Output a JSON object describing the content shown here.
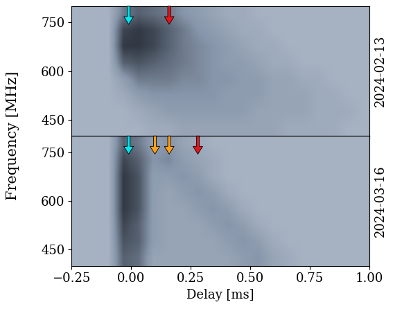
{
  "chart_data": [
    {
      "type": "heatmap",
      "title": "2024-02-13",
      "ylabel": "Frequency [MHz]",
      "xlim": [
        -0.25,
        1.0
      ],
      "ylim": [
        400,
        800
      ],
      "xticks": [
        {
          "value": -0.25,
          "label": "−0.25"
        },
        {
          "value": 0.0,
          "label": "0.00"
        },
        {
          "value": 0.25,
          "label": "0.25"
        },
        {
          "value": 0.5,
          "label": "0.50"
        },
        {
          "value": 0.75,
          "label": "0.75"
        },
        {
          "value": 1.0,
          "label": "1.00"
        }
      ],
      "yticks": [
        450,
        600,
        750
      ],
      "tick_labels": "y",
      "arrows": [
        {
          "delay": -0.01,
          "color": "#00e5ee"
        },
        {
          "delay": 0.16,
          "color": "#e8141c"
        }
      ],
      "cells": [
        [
          0.3,
          0.3,
          0.3,
          0.6,
          0.7,
          0.65,
          0.6,
          0.5,
          0.45,
          0.4,
          0.35,
          0.35,
          0.3,
          0.3,
          0.3,
          0.3,
          0.3,
          0.3,
          0.3,
          0.3
        ],
        [
          0.3,
          0.3,
          0.3,
          0.8,
          0.85,
          0.8,
          0.7,
          0.6,
          0.5,
          0.45,
          0.4,
          0.35,
          0.35,
          0.3,
          0.3,
          0.3,
          0.3,
          0.3,
          0.3,
          0.3
        ],
        [
          0.3,
          0.3,
          0.3,
          0.85,
          0.85,
          0.8,
          0.7,
          0.6,
          0.55,
          0.5,
          0.45,
          0.4,
          0.35,
          0.35,
          0.3,
          0.3,
          0.3,
          0.3,
          0.3,
          0.3
        ],
        [
          0.3,
          0.3,
          0.3,
          0.7,
          0.75,
          0.7,
          0.65,
          0.6,
          0.55,
          0.5,
          0.45,
          0.45,
          0.4,
          0.35,
          0.35,
          0.3,
          0.3,
          0.3,
          0.3,
          0.3
        ],
        [
          0.3,
          0.3,
          0.3,
          0.45,
          0.6,
          0.6,
          0.6,
          0.55,
          0.55,
          0.5,
          0.5,
          0.45,
          0.45,
          0.4,
          0.4,
          0.35,
          0.35,
          0.3,
          0.3,
          0.3
        ],
        [
          0.3,
          0.3,
          0.3,
          0.35,
          0.45,
          0.5,
          0.5,
          0.5,
          0.5,
          0.5,
          0.45,
          0.45,
          0.45,
          0.4,
          0.4,
          0.4,
          0.35,
          0.35,
          0.3,
          0.3
        ],
        [
          0.3,
          0.3,
          0.3,
          0.3,
          0.35,
          0.4,
          0.45,
          0.45,
          0.45,
          0.45,
          0.45,
          0.45,
          0.4,
          0.4,
          0.4,
          0.4,
          0.35,
          0.35,
          0.35,
          0.3
        ],
        [
          0.3,
          0.3,
          0.3,
          0.3,
          0.3,
          0.35,
          0.35,
          0.4,
          0.4,
          0.4,
          0.4,
          0.4,
          0.4,
          0.4,
          0.35,
          0.35,
          0.35,
          0.35,
          0.3,
          0.3
        ]
      ]
    },
    {
      "type": "heatmap",
      "title": "2024-03-16",
      "xlabel": "Delay [ms]",
      "xlim": [
        -0.25,
        1.0
      ],
      "ylim": [
        400,
        800
      ],
      "xticks": [
        {
          "value": -0.25,
          "label": "−0.25"
        },
        {
          "value": 0.0,
          "label": "0.00"
        },
        {
          "value": 0.25,
          "label": "0.25"
        },
        {
          "value": 0.5,
          "label": "0.50"
        },
        {
          "value": 0.75,
          "label": "0.75"
        },
        {
          "value": 1.0,
          "label": "1.00"
        }
      ],
      "yticks": [
        450,
        600,
        750
      ],
      "arrows": [
        {
          "delay": -0.01,
          "color": "#00e5ee"
        },
        {
          "delay": 0.1,
          "color": "#ff9f1a"
        },
        {
          "delay": 0.16,
          "color": "#ff9f1a"
        },
        {
          "delay": 0.28,
          "color": "#e8141c"
        }
      ],
      "cells": [
        [
          0.3,
          0.3,
          0.3,
          0.7,
          0.6,
          0.45,
          0.5,
          0.4,
          0.35,
          0.3,
          0.3,
          0.3,
          0.3,
          0.3,
          0.3,
          0.3,
          0.3,
          0.3,
          0.3,
          0.3
        ],
        [
          0.3,
          0.3,
          0.3,
          0.8,
          0.7,
          0.5,
          0.55,
          0.45,
          0.4,
          0.35,
          0.3,
          0.3,
          0.3,
          0.3,
          0.3,
          0.3,
          0.3,
          0.3,
          0.3,
          0.3
        ],
        [
          0.3,
          0.3,
          0.3,
          0.85,
          0.75,
          0.45,
          0.45,
          0.5,
          0.45,
          0.35,
          0.3,
          0.3,
          0.3,
          0.3,
          0.3,
          0.3,
          0.3,
          0.3,
          0.3,
          0.3
        ],
        [
          0.3,
          0.3,
          0.3,
          0.85,
          0.75,
          0.45,
          0.4,
          0.45,
          0.5,
          0.45,
          0.35,
          0.3,
          0.3,
          0.3,
          0.3,
          0.3,
          0.3,
          0.3,
          0.3,
          0.3
        ],
        [
          0.3,
          0.3,
          0.3,
          0.85,
          0.75,
          0.45,
          0.4,
          0.4,
          0.45,
          0.5,
          0.45,
          0.35,
          0.3,
          0.3,
          0.3,
          0.3,
          0.3,
          0.3,
          0.3,
          0.3
        ],
        [
          0.3,
          0.3,
          0.3,
          0.8,
          0.7,
          0.45,
          0.4,
          0.4,
          0.4,
          0.45,
          0.5,
          0.45,
          0.35,
          0.3,
          0.3,
          0.3,
          0.3,
          0.3,
          0.3,
          0.3
        ],
        [
          0.3,
          0.3,
          0.3,
          0.75,
          0.7,
          0.45,
          0.4,
          0.4,
          0.4,
          0.4,
          0.45,
          0.5,
          0.45,
          0.35,
          0.3,
          0.3,
          0.3,
          0.3,
          0.3,
          0.3
        ],
        [
          0.3,
          0.3,
          0.3,
          0.7,
          0.65,
          0.4,
          0.4,
          0.4,
          0.4,
          0.4,
          0.4,
          0.45,
          0.5,
          0.4,
          0.35,
          0.3,
          0.3,
          0.3,
          0.3,
          0.3
        ]
      ]
    }
  ]
}
